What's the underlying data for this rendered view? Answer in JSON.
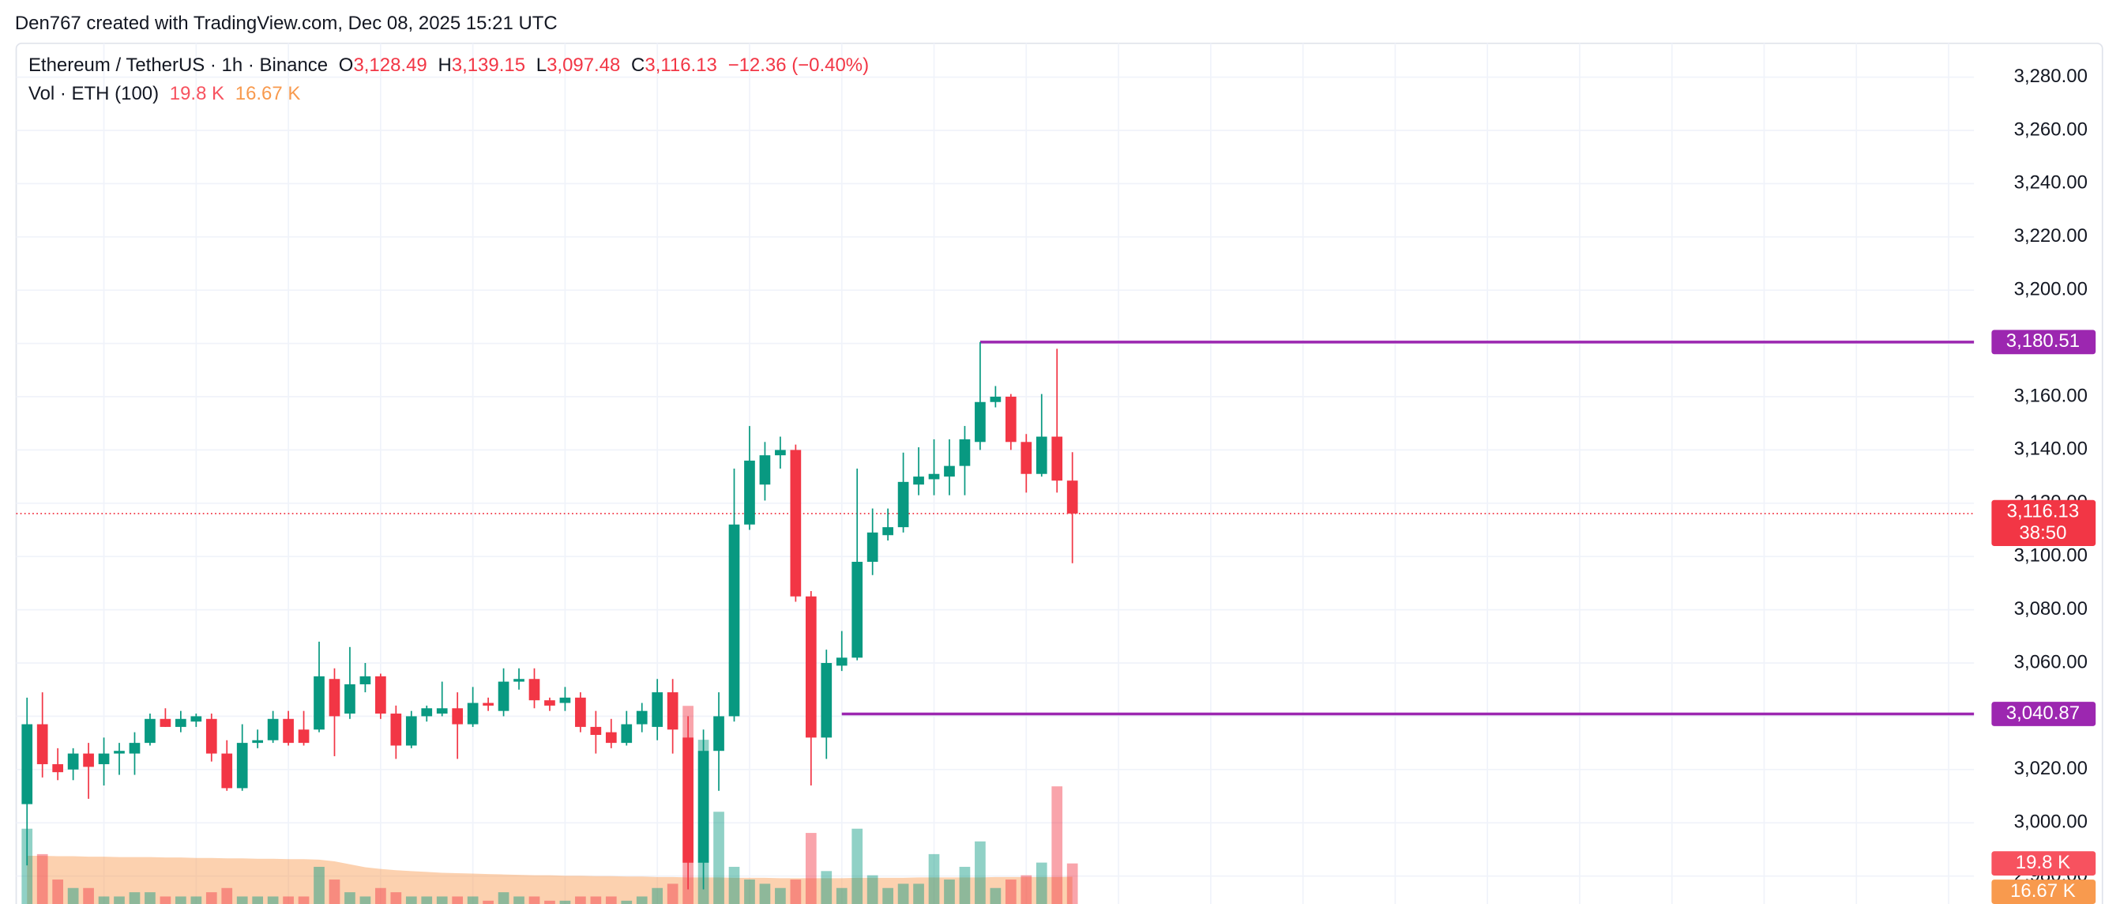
{
  "header": {
    "text": "Den767 created with TradingView.com, Dec 08, 2025 15:21 UTC"
  },
  "chart_data": {
    "type": "candlestick",
    "symbol": "Ethereum / TetherUS · 1h · Binance",
    "ohlc_letters": [
      "O",
      "H",
      "L",
      "C"
    ],
    "last_labels": [
      "3,128.49",
      "3,139.15",
      "3,097.48",
      "3,116.13"
    ],
    "change": "−12.36 (−0.40%)",
    "colors": {
      "up": "#089981",
      "down": "#f23645"
    },
    "candles": [
      [
        3007,
        3047,
        2984,
        3037
      ],
      [
        3037,
        3049,
        3017,
        3022
      ],
      [
        3022,
        3028,
        3016,
        3019
      ],
      [
        3020,
        3028,
        3016,
        3026
      ],
      [
        3026,
        3030,
        3009,
        3021
      ],
      [
        3022,
        3032,
        3014,
        3026
      ],
      [
        3026,
        3030,
        3018,
        3027
      ],
      [
        3026,
        3034,
        3018,
        3030
      ],
      [
        3030,
        3041,
        3029,
        3039
      ],
      [
        3039,
        3043,
        3036,
        3036
      ],
      [
        3036,
        3042,
        3034,
        3039
      ],
      [
        3038,
        3041,
        3036,
        3040
      ],
      [
        3039,
        3041,
        3023,
        3026
      ],
      [
        3026,
        3031,
        3012,
        3013
      ],
      [
        3013,
        3037,
        3012,
        3030
      ],
      [
        3030,
        3035,
        3028,
        3031
      ],
      [
        3031,
        3042,
        3030,
        3039
      ],
      [
        3039,
        3042,
        3029,
        3030
      ],
      [
        3035,
        3042,
        3029,
        3030
      ],
      [
        3035,
        3068,
        3034,
        3055
      ],
      [
        3054,
        3058,
        3025,
        3040
      ],
      [
        3041,
        3066,
        3039,
        3052
      ],
      [
        3052,
        3060,
        3049,
        3055
      ],
      [
        3055,
        3056,
        3039,
        3041
      ],
      [
        3041,
        3044,
        3024,
        3029
      ],
      [
        3029,
        3042,
        3028,
        3040
      ],
      [
        3040,
        3044,
        3038,
        3043
      ],
      [
        3041,
        3053,
        3040,
        3043
      ],
      [
        3043,
        3049,
        3024,
        3037
      ],
      [
        3037,
        3051,
        3036,
        3045
      ],
      [
        3045,
        3047,
        3042,
        3044
      ],
      [
        3042,
        3058,
        3040,
        3053
      ],
      [
        3053,
        3058,
        3050,
        3054
      ],
      [
        3054,
        3058,
        3043,
        3046
      ],
      [
        3046,
        3047,
        3042,
        3044
      ],
      [
        3045,
        3051,
        3042,
        3047
      ],
      [
        3047,
        3049,
        3034,
        3036
      ],
      [
        3036,
        3042,
        3026,
        3033
      ],
      [
        3034,
        3039,
        3028,
        3030
      ],
      [
        3030,
        3042,
        3029,
        3037
      ],
      [
        3037,
        3045,
        3034,
        3042
      ],
      [
        3036,
        3054,
        3031,
        3049
      ],
      [
        3049,
        3054,
        3026,
        3035
      ],
      [
        3032,
        3040,
        2975,
        2985
      ],
      [
        2985,
        3035,
        2975,
        3027
      ],
      [
        3027,
        3049,
        3012,
        3040
      ],
      [
        3040,
        3133,
        3038,
        3112
      ],
      [
        3112,
        3149,
        3110,
        3136
      ],
      [
        3127,
        3143,
        3121,
        3138
      ],
      [
        3138,
        3145,
        3133,
        3140
      ],
      [
        3140,
        3142,
        3083,
        3085
      ],
      [
        3085,
        3087,
        3014,
        3032
      ],
      [
        3032,
        3065,
        3024,
        3060
      ],
      [
        3059,
        3072,
        3057,
        3062
      ],
      [
        3062,
        3133,
        3061,
        3098
      ],
      [
        3098,
        3118,
        3093,
        3109
      ],
      [
        3108,
        3118,
        3106,
        3111
      ],
      [
        3111,
        3139,
        3109,
        3128
      ],
      [
        3127,
        3141,
        3123,
        3130
      ],
      [
        3129,
        3144,
        3123,
        3131
      ],
      [
        3130,
        3144,
        3123,
        3134
      ],
      [
        3134,
        3149,
        3123,
        3144
      ],
      [
        3143,
        3180.51,
        3140,
        3158
      ],
      [
        3158,
        3164,
        3156,
        3160
      ],
      [
        3160,
        3161,
        3140,
        3143
      ],
      [
        3143,
        3146,
        3124,
        3131
      ],
      [
        3131,
        3161,
        3130,
        3145
      ],
      [
        3145,
        3178,
        3124,
        3128.49
      ],
      [
        3128.49,
        3139.15,
        3097.48,
        3116.13
      ]
    ],
    "ylim": [
      2969.5,
      3292.7
    ],
    "yticks": [
      {
        "value": 3280,
        "label": "3,280.00"
      },
      {
        "value": 3260,
        "label": "3,260.00"
      },
      {
        "value": 3240,
        "label": "3,240.00"
      },
      {
        "value": 3220,
        "label": "3,220.00"
      },
      {
        "value": 3200,
        "label": "3,200.00"
      },
      {
        "value": 3180,
        "label": "3,180.00"
      },
      {
        "value": 3160,
        "label": "3,160.00"
      },
      {
        "value": 3140,
        "label": "3,140.00"
      },
      {
        "value": 3120,
        "label": "3,120.00"
      },
      {
        "value": 3100,
        "label": "3,100.00"
      },
      {
        "value": 3080,
        "label": "3,080.00"
      },
      {
        "value": 3060,
        "label": "3,060.00"
      },
      {
        "value": 3040,
        "label": "3,040.00"
      },
      {
        "value": 3020,
        "label": "3,020.00"
      },
      {
        "value": 3000,
        "label": "3,000.00"
      },
      {
        "value": 2980,
        "label": "2,980.00"
      }
    ],
    "grid": true,
    "levels": [
      {
        "value": 3180.51,
        "label": "3,180.51",
        "color": "#9c27b0",
        "from": 62
      },
      {
        "value": 3040.87,
        "label": "3,040.87",
        "color": "#9c27b0",
        "from": 53
      }
    ],
    "countdown": "38:50",
    "volume": {
      "title": "Vol · ETH (100)",
      "values": [
        28,
        22,
        16,
        14,
        14,
        12,
        12,
        13,
        13,
        12,
        12,
        12,
        13,
        14,
        12,
        12,
        12,
        12,
        12,
        19,
        16,
        13,
        12,
        14,
        13,
        12,
        12,
        12,
        12,
        12,
        11,
        13,
        12,
        12,
        11,
        11,
        12,
        12,
        12,
        11,
        12,
        14,
        15,
        57,
        49,
        32,
        19,
        16,
        15,
        14,
        16,
        27,
        18,
        14,
        28,
        17,
        14,
        15,
        15,
        22,
        16,
        19,
        25,
        14,
        16,
        17,
        20,
        38,
        19.8
      ],
      "last_label": "19.8 K",
      "ma_values": [
        21.6,
        21.6,
        21.5,
        21.5,
        21.4,
        21.4,
        21.3,
        21.3,
        21.3,
        21.2,
        21.2,
        21.1,
        21.1,
        21.0,
        21.0,
        20.9,
        20.9,
        20.8,
        20.8,
        20.7,
        20.3,
        19.6,
        18.9,
        18.5,
        18.2,
        18.0,
        17.8,
        17.6,
        17.5,
        17.4,
        17.3,
        17.2,
        17.1,
        17.0,
        17.0,
        16.9,
        16.9,
        16.8,
        16.8,
        16.7,
        16.7,
        16.6,
        16.6,
        16.5,
        16.5,
        16.5,
        16.4,
        16.4,
        16.4,
        16.3,
        16.3,
        16.3,
        16.3,
        16.3,
        16.4,
        16.4,
        16.4,
        16.4,
        16.5,
        16.5,
        16.5,
        16.5,
        16.5,
        16.6,
        16.6,
        16.6,
        16.6,
        16.6,
        16.67
      ],
      "ma_last_label": "16.67 K",
      "ma_color": "#f89a4e"
    }
  }
}
